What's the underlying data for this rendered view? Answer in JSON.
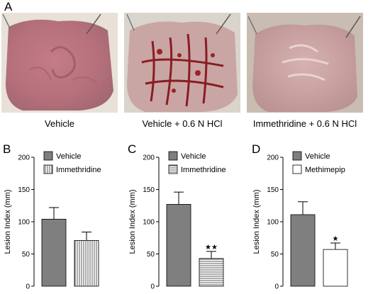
{
  "panel_a": {
    "letter": "A",
    "photos": [
      {
        "caption": "Vehicle"
      },
      {
        "caption": "Vehicle + 0.6 N HCl"
      },
      {
        "caption": "Immethridine + 0.6 N HCl"
      }
    ]
  },
  "chart_data": [
    {
      "panel": "B",
      "type": "bar",
      "ylabel": "Lesion Index (mm)",
      "ylim": [
        0,
        200
      ],
      "yticks": [
        "0",
        "50",
        "100",
        "150",
        "200"
      ],
      "series": [
        {
          "name": "Vehicle",
          "value": 104,
          "error": 18,
          "pattern": "solid",
          "sig": ""
        },
        {
          "name": "Immethridine",
          "value": 71,
          "error": 13,
          "pattern": "vertical",
          "sig": ""
        }
      ]
    },
    {
      "panel": "C",
      "type": "bar",
      "ylabel": "Lesion Index (mm)",
      "ylim": [
        0,
        200
      ],
      "yticks": [
        "0",
        "50",
        "100",
        "150",
        "200"
      ],
      "series": [
        {
          "name": "Vehicle",
          "value": 127,
          "error": 19,
          "pattern": "solid",
          "sig": ""
        },
        {
          "name": "Immethridine",
          "value": 43,
          "error": 11,
          "pattern": "horizontal",
          "sig": "★★"
        }
      ]
    },
    {
      "panel": "D",
      "type": "bar",
      "ylabel": "Lesion Index (mm)",
      "ylim": [
        0,
        200
      ],
      "yticks": [
        "0",
        "50",
        "100",
        "150",
        "200"
      ],
      "series": [
        {
          "name": "Vehicle",
          "value": 111,
          "error": 20,
          "pattern": "solid",
          "sig": ""
        },
        {
          "name": "Methimepip",
          "value": 57,
          "error": 10,
          "pattern": "white",
          "sig": "★"
        }
      ]
    }
  ]
}
